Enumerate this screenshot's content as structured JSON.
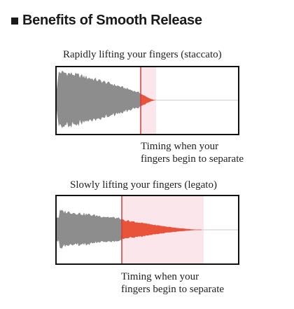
{
  "title": "Benefits of Smooth Release",
  "colors": {
    "wave_gray": "#8d8d8d",
    "wave_red": "#e8533a",
    "highlight": "#fbe6ec",
    "marker": "#d23a3a"
  },
  "panels": [
    {
      "caption": "Rapidly lifting your fingers (staccato)",
      "note_line1": "Timing when your",
      "note_line2": "fingers begin to separate"
    },
    {
      "caption": "Slowly lifting your fingers (legato)",
      "note_line1": "Timing when your",
      "note_line2": "fingers begin to separate"
    }
  ]
}
